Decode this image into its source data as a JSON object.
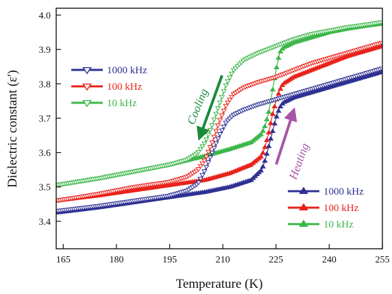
{
  "chart_data": {
    "type": "line",
    "xlabel": "Temperature (K)",
    "ylabel": "Dielectric constant (ε')",
    "xlim": [
      163,
      255
    ],
    "ylim": [
      3.32,
      4.02
    ],
    "xticks": [
      165,
      180,
      195,
      210,
      225,
      240,
      255
    ],
    "yticks": [
      3.4,
      3.5,
      3.6,
      3.7,
      3.8,
      3.9,
      4.0
    ],
    "grid": false,
    "colors": {
      "1000 kHz": "#2e3192",
      "100 kHz": "#e8221b",
      "10 kHz": "#3db64a",
      "cooling_arrow": "#1a8a3a",
      "heating_arrow": "#a855a8"
    },
    "series": [
      {
        "name": "1000 kHz",
        "mode": "cooling",
        "marker": "triangle-down-open",
        "color": "#2e3192",
        "x": [
          163,
          175,
          185,
          195,
          200,
          203,
          205,
          207,
          209,
          211,
          213,
          216,
          220,
          225,
          230,
          235,
          240,
          245,
          250,
          255
        ],
        "y": [
          3.43,
          3.445,
          3.46,
          3.475,
          3.49,
          3.51,
          3.55,
          3.6,
          3.65,
          3.69,
          3.71,
          3.725,
          3.74,
          3.755,
          3.77,
          3.785,
          3.8,
          3.815,
          3.83,
          3.845
        ]
      },
      {
        "name": "100 kHz",
        "mode": "cooling",
        "marker": "triangle-down-open",
        "color": "#e8221b",
        "x": [
          163,
          175,
          185,
          195,
          200,
          203,
          205,
          207,
          209,
          211,
          213,
          216,
          220,
          225,
          230,
          235,
          240,
          245,
          250,
          255
        ],
        "y": [
          3.46,
          3.48,
          3.5,
          3.515,
          3.53,
          3.55,
          3.58,
          3.63,
          3.69,
          3.74,
          3.77,
          3.79,
          3.805,
          3.82,
          3.84,
          3.86,
          3.875,
          3.89,
          3.905,
          3.92
        ]
      },
      {
        "name": "10 kHz",
        "mode": "cooling",
        "marker": "triangle-down-open",
        "color": "#3db64a",
        "x": [
          163,
          175,
          185,
          195,
          200,
          203,
          205,
          207,
          209,
          211,
          213,
          216,
          220,
          225,
          230,
          235,
          240,
          245,
          250,
          255
        ],
        "y": [
          3.505,
          3.525,
          3.545,
          3.565,
          3.58,
          3.6,
          3.63,
          3.68,
          3.74,
          3.8,
          3.84,
          3.87,
          3.89,
          3.91,
          3.93,
          3.945,
          3.955,
          3.965,
          3.972,
          3.98
        ]
      },
      {
        "name": "1000 kHz",
        "mode": "heating",
        "marker": "triangle-up-filled",
        "color": "#2e3192",
        "x": [
          163,
          175,
          185,
          195,
          205,
          212,
          218,
          221,
          222,
          223,
          224,
          225,
          226,
          227,
          230,
          235,
          240,
          245,
          250,
          255
        ],
        "y": [
          3.425,
          3.44,
          3.455,
          3.47,
          3.485,
          3.5,
          3.52,
          3.55,
          3.58,
          3.62,
          3.66,
          3.7,
          3.73,
          3.745,
          3.76,
          3.775,
          3.79,
          3.805,
          3.82,
          3.835
        ]
      },
      {
        "name": "100 kHz",
        "mode": "heating",
        "marker": "triangle-up-filled",
        "color": "#e8221b",
        "x": [
          163,
          175,
          185,
          195,
          205,
          212,
          218,
          221,
          222,
          223,
          224,
          225,
          226,
          227,
          230,
          235,
          240,
          245,
          250,
          255
        ],
        "y": [
          3.46,
          3.475,
          3.49,
          3.505,
          3.52,
          3.54,
          3.565,
          3.59,
          3.62,
          3.66,
          3.71,
          3.75,
          3.78,
          3.8,
          3.82,
          3.84,
          3.86,
          3.88,
          3.895,
          3.91
        ]
      },
      {
        "name": "10 kHz",
        "mode": "heating",
        "marker": "triangle-up-filled",
        "color": "#3db64a",
        "x": [
          163,
          175,
          185,
          195,
          205,
          212,
          218,
          221,
          222,
          223,
          224,
          225,
          226,
          227,
          230,
          235,
          240,
          245,
          250,
          255
        ],
        "y": [
          3.505,
          3.525,
          3.545,
          3.565,
          3.59,
          3.61,
          3.63,
          3.655,
          3.68,
          3.72,
          3.78,
          3.84,
          3.89,
          3.905,
          3.92,
          3.935,
          3.95,
          3.96,
          3.968,
          3.975
        ]
      }
    ],
    "legend_cooling": {
      "placement": "upper-left",
      "entries": [
        "1000 kHz",
        "100 kHz",
        "10 kHz"
      ]
    },
    "legend_heating": {
      "placement": "lower-right",
      "entries": [
        "1000 kHz",
        "100 kHz",
        "10 kHz"
      ]
    },
    "annotations": {
      "cooling": "Cooling",
      "heating": "Heating"
    }
  }
}
